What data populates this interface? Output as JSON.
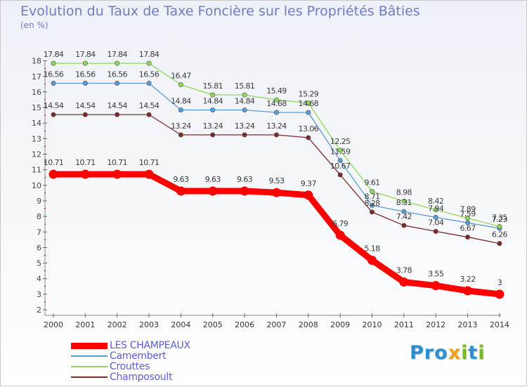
{
  "chart_data": {
    "type": "line",
    "title": "Evolution du Taux de Taxe Foncière sur les Propriétés Bâties",
    "ylabel": "(en %)",
    "xlabel": "",
    "x": [
      "2000",
      "2001",
      "2002",
      "2003",
      "2004",
      "2005",
      "2006",
      "2007",
      "2008",
      "2009",
      "2010",
      "2011",
      "2012",
      "2013",
      "2014"
    ],
    "y_ticks": [
      "2",
      "3",
      "4",
      "5",
      "6",
      "7",
      "8",
      "9",
      "10",
      "11",
      "12",
      "13",
      "14",
      "15",
      "16",
      "17",
      "18"
    ],
    "ylim": [
      2,
      18
    ],
    "grid": false,
    "legend_position": "bottom-left",
    "series": [
      {
        "name": "LES CHAMPEAUX",
        "color": "#ff0000",
        "labels": [
          "10.71",
          "10.71",
          "10.71",
          "10.71",
          "9.63",
          "9.63",
          "9.63",
          "9.53",
          "9.37",
          "6.79",
          "5.18",
          "3.78",
          "3.55",
          "3.22",
          "3"
        ],
        "values": [
          10.71,
          10.71,
          10.71,
          10.71,
          9.63,
          9.63,
          9.63,
          9.53,
          9.37,
          6.79,
          5.18,
          3.78,
          3.55,
          3.22,
          3
        ]
      },
      {
        "name": "Camembert",
        "color": "#5b9bd5",
        "labels": [
          "16.56",
          "16.56",
          "16.56",
          "16.56",
          "14.84",
          "14.84",
          "14.84",
          "14.68",
          "14.68",
          "11.59",
          "8.71",
          "8.31",
          "7.94",
          "7.59",
          "7.23"
        ],
        "values": [
          16.56,
          16.56,
          16.56,
          16.56,
          14.84,
          14.84,
          14.84,
          14.68,
          14.68,
          11.59,
          8.71,
          8.31,
          7.94,
          7.59,
          7.23
        ]
      },
      {
        "name": "Crouttes",
        "color": "#8fd65a",
        "labels": [
          "17.84",
          "17.84",
          "17.84",
          "17.84",
          "16.47",
          "15.81",
          "15.81",
          "15.49",
          "15.29",
          "12.25",
          "9.61",
          "8.98",
          "8.42",
          "7.89",
          "7.35"
        ],
        "values": [
          17.84,
          17.84,
          17.84,
          17.84,
          16.47,
          15.81,
          15.81,
          15.49,
          15.29,
          12.25,
          9.61,
          8.98,
          8.42,
          7.89,
          7.35
        ]
      },
      {
        "name": "Champosoult",
        "color": "#7a2a2a",
        "labels": [
          "14.54",
          "14.54",
          "14.54",
          "14.54",
          "13.24",
          "13.24",
          "13.24",
          "13.24",
          "13.06",
          "10.67",
          "8.28",
          "7.42",
          "7.04",
          "6.67",
          "6.26"
        ],
        "values": [
          14.54,
          14.54,
          14.54,
          14.54,
          13.24,
          13.24,
          13.24,
          13.24,
          13.06,
          10.67,
          8.28,
          7.42,
          7.04,
          6.67,
          6.26
        ]
      }
    ]
  },
  "brand": {
    "letters": [
      {
        "ch": "P",
        "color": "#2b8fd1"
      },
      {
        "ch": "r",
        "color": "#2b8fd1"
      },
      {
        "ch": "o",
        "color": "#2b8fd1"
      },
      {
        "ch": "x",
        "color": "#f0a21e"
      },
      {
        "ch": "i",
        "color": "#7ab829"
      },
      {
        "ch": "t",
        "color": "#2b8fd1"
      },
      {
        "ch": "i",
        "color": "#7ab829"
      }
    ]
  }
}
